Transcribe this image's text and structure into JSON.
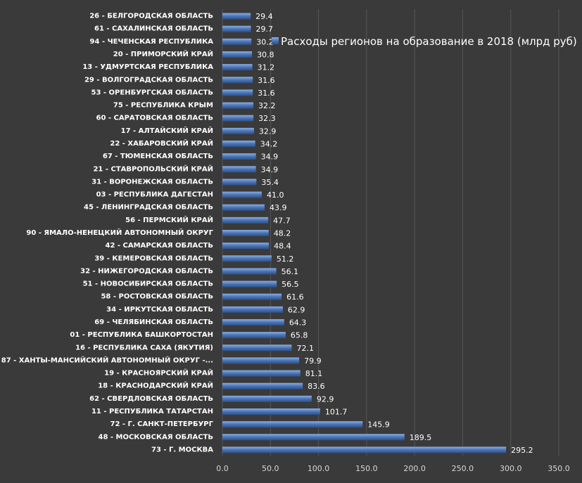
{
  "chart_data": {
    "type": "bar",
    "orientation": "horizontal",
    "categories": [
      "26 - БЕЛГОРОДСКАЯ ОБЛАСТЬ",
      "61 - САХАЛИНСКАЯ ОБЛАСТЬ",
      "94 - ЧЕЧЕНСКАЯ РЕСПУБЛИКА",
      "20 - ПРИМОРСКИЙ КРАЙ",
      "13 - УДМУРТСКАЯ РЕСПУБЛИКА",
      "29 - ВОЛГОГРАДСКАЯ ОБЛАСТЬ",
      "53 - ОРЕНБУРГСКАЯ ОБЛАСТЬ",
      "75 - РЕСПУБЛИКА КРЫМ",
      "60 - САРАТОВСКАЯ ОБЛАСТЬ",
      "17 - АЛТАЙСКИЙ КРАЙ",
      "22 - ХАБАРОВСКИЙ КРАЙ",
      "67 - ТЮМЕНСКАЯ ОБЛАСТЬ",
      "21 - СТАВРОПОЛЬСКИЙ КРАЙ",
      "31 - ВОРОНЕЖСКАЯ ОБЛАСТЬ",
      "03 - РЕСПУБЛИКА ДАГЕСТАН",
      "45 - ЛЕНИНГРАДСКАЯ ОБЛАСТЬ",
      "56 - ПЕРМСКИЙ КРАЙ",
      "90 - ЯМАЛО-НЕНЕЦКИЙ АВТОНОМНЫЙ ОКРУГ",
      "42 - САМАРСКАЯ ОБЛАСТЬ",
      "39 - КЕМЕРОВСКАЯ ОБЛАСТЬ",
      "32 - НИЖЕГОРОДСКАЯ ОБЛАСТЬ",
      "51 - НОВОСИБИРСКАЯ ОБЛАСТЬ",
      "58 - РОСТОВСКАЯ ОБЛАСТЬ",
      "34 - ИРКУТСКАЯ ОБЛАСТЬ",
      "69 - ЧЕЛЯБИНСКАЯ ОБЛАСТЬ",
      "01 - РЕСПУБЛИКА БАШКОРТОСТАН",
      "16 - РЕСПУБЛИКА САХА (ЯКУТИЯ)",
      "87 - ХАНТЫ-МАНСИЙСКИЙ АВТОНОМНЫЙ ОКРУГ -...",
      "19 - КРАСНОЯРСКИЙ КРАЙ",
      "18 - КРАСНОДАРСКИЙ КРАЙ",
      "62 - СВЕРДЛОВСКАЯ ОБЛАСТЬ",
      "11 - РЕСПУБЛИКА ТАТАРСТАН",
      "72 - Г. САНКТ-ПЕТЕРБУРГ",
      "48 - МОСКОВСКАЯ ОБЛАСТЬ",
      "73 - Г. МОСКВА"
    ],
    "series": [
      {
        "name": "Расходы регионов на образование в 2018 (млрд руб)",
        "values": [
          29.4,
          29.7,
          30.2,
          30.8,
          31.2,
          31.6,
          31.6,
          32.2,
          32.3,
          32.9,
          34.2,
          34.9,
          34.9,
          35.4,
          41.0,
          43.9,
          47.7,
          48.2,
          48.4,
          51.2,
          56.1,
          56.5,
          61.6,
          62.9,
          64.3,
          65.8,
          72.1,
          79.9,
          81.1,
          83.6,
          92.9,
          101.7,
          145.9,
          189.5,
          295.2
        ],
        "value_labels": [
          "29.4",
          "29.7",
          "30.2",
          "30.8",
          "31.2",
          "31.6",
          "31.6",
          "32.2",
          "32.3",
          "32.9",
          "34.2",
          "34.9",
          "34.9",
          "35.4",
          "41.0",
          "43.9",
          "47.7",
          "48.2",
          "48.4",
          "51.2",
          "56.1",
          "56.5",
          "61.6",
          "62.9",
          "64.3",
          "65.8",
          "72.1",
          "79.9",
          "81.1",
          "83.6",
          "92.9",
          "101.7",
          "145.9",
          "189.5",
          "295.2"
        ],
        "color": "#4a74b4"
      }
    ],
    "xlim": [
      0,
      350
    ],
    "x_ticks": [
      "0.0",
      "50.0",
      "100.0",
      "150.0",
      "200.0",
      "250.0",
      "300.0",
      "350.0"
    ],
    "grid": true,
    "legend_position": "top-right",
    "title": "",
    "xlabel": "",
    "ylabel": ""
  },
  "colors": {
    "background": "#3a3a3a",
    "bar": "#4a74b4",
    "grid": "#575757",
    "text": "#ffffff"
  }
}
